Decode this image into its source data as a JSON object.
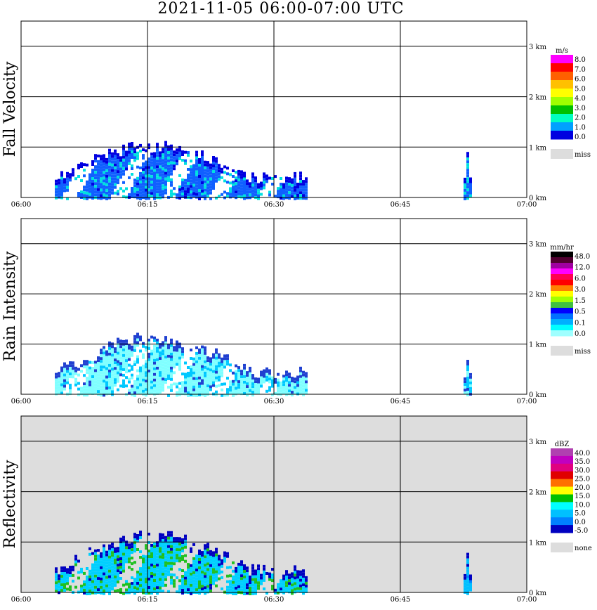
{
  "chart_data": {
    "type": "heatmap",
    "title": "2021-11-05   06:00-07:00 UTC",
    "x_ticks": [
      "06:00",
      "06:15",
      "06:30",
      "06:45",
      "07:00"
    ],
    "y_ticks": [
      "0 km",
      "1 km",
      "2 km",
      "3 km"
    ],
    "x_range_minutes": [
      0,
      60
    ],
    "y_range_km": [
      0,
      3.5
    ],
    "grid": true,
    "panels": [
      {
        "ylabel": "Fall Velocity",
        "background": "#ffffff",
        "legend": {
          "unit": "m/s",
          "labels": [
            "8.0",
            "7.0",
            "6.0",
            "5.0",
            "4.0",
            "3.0",
            "2.0",
            "1.0",
            "0.0"
          ],
          "colors": [
            "#ff00ff",
            "#ff0000",
            "#ff6000",
            "#ffc000",
            "#ffff00",
            "#a0ff00",
            "#00c000",
            "#00ffc0",
            "#00a0ff",
            "#0000e0"
          ],
          "missing_label": "miss",
          "missing_color": "#dddddd"
        },
        "regions": [
          {
            "start_min": 4.0,
            "end_min": 34.0,
            "top_km": 1.15,
            "main_color": "#1060ff",
            "accent_color": "#00e0e0",
            "edge_color": "#0000e0"
          },
          {
            "start_min": 52.5,
            "end_min": 53.5,
            "top_km": 0.95,
            "main_color": "#1060ff",
            "accent_color": "#00e0e0",
            "edge_color": "#0000e0"
          }
        ]
      },
      {
        "ylabel": "Rain Intensity",
        "background": "#ffffff",
        "legend": {
          "unit": "mm/hr",
          "labels": [
            "48.0",
            "12.0",
            "6.0",
            "3.0",
            "1.5",
            "0.5",
            "0.1",
            "0.0"
          ],
          "colors": [
            "#000000",
            "#500030",
            "#a000a0",
            "#ff00ff",
            "#ff0050",
            "#ff0000",
            "#ff8000",
            "#ffff00",
            "#a0ff00",
            "#40c040",
            "#0000ff",
            "#0070ff",
            "#00b0ff",
            "#00ffff",
            "#a0ffff"
          ],
          "missing_label": "miss",
          "missing_color": "#dddddd"
        },
        "regions": [
          {
            "start_min": 4.0,
            "end_min": 34.0,
            "top_km": 1.25,
            "main_color": "#80ffff",
            "accent_color": "#00c8ff",
            "edge_color": "#2040d0"
          },
          {
            "start_min": 52.5,
            "end_min": 53.5,
            "top_km": 0.85,
            "main_color": "#80ffff",
            "accent_color": "#00c8ff",
            "edge_color": "#2040d0"
          }
        ]
      },
      {
        "ylabel": "Reflectivity",
        "background": "#dddddd",
        "legend": {
          "unit": "dBZ",
          "labels": [
            "40.0",
            "35.0",
            "30.0",
            "25.0",
            "20.0",
            "15.0",
            "10.0",
            "5.0",
            "0.0",
            "-5.0"
          ],
          "colors": [
            "#b040b0",
            "#c000c0",
            "#e00080",
            "#e00000",
            "#ff7000",
            "#ffff00",
            "#00c000",
            "#00ffff",
            "#00c0ff",
            "#0080ff",
            "#0000c0"
          ],
          "missing_label": "none",
          "missing_color": "#dddddd"
        },
        "regions": [
          {
            "start_min": 4.0,
            "end_min": 34.0,
            "top_km": 1.25,
            "main_color": "#00d0ff",
            "accent_color": "#20c020",
            "edge_color": "#0000c0"
          },
          {
            "start_min": 52.5,
            "end_min": 53.5,
            "top_km": 0.9,
            "main_color": "#00c0ff",
            "accent_color": "#0080ff",
            "edge_color": "#0000c0"
          }
        ]
      }
    ]
  }
}
